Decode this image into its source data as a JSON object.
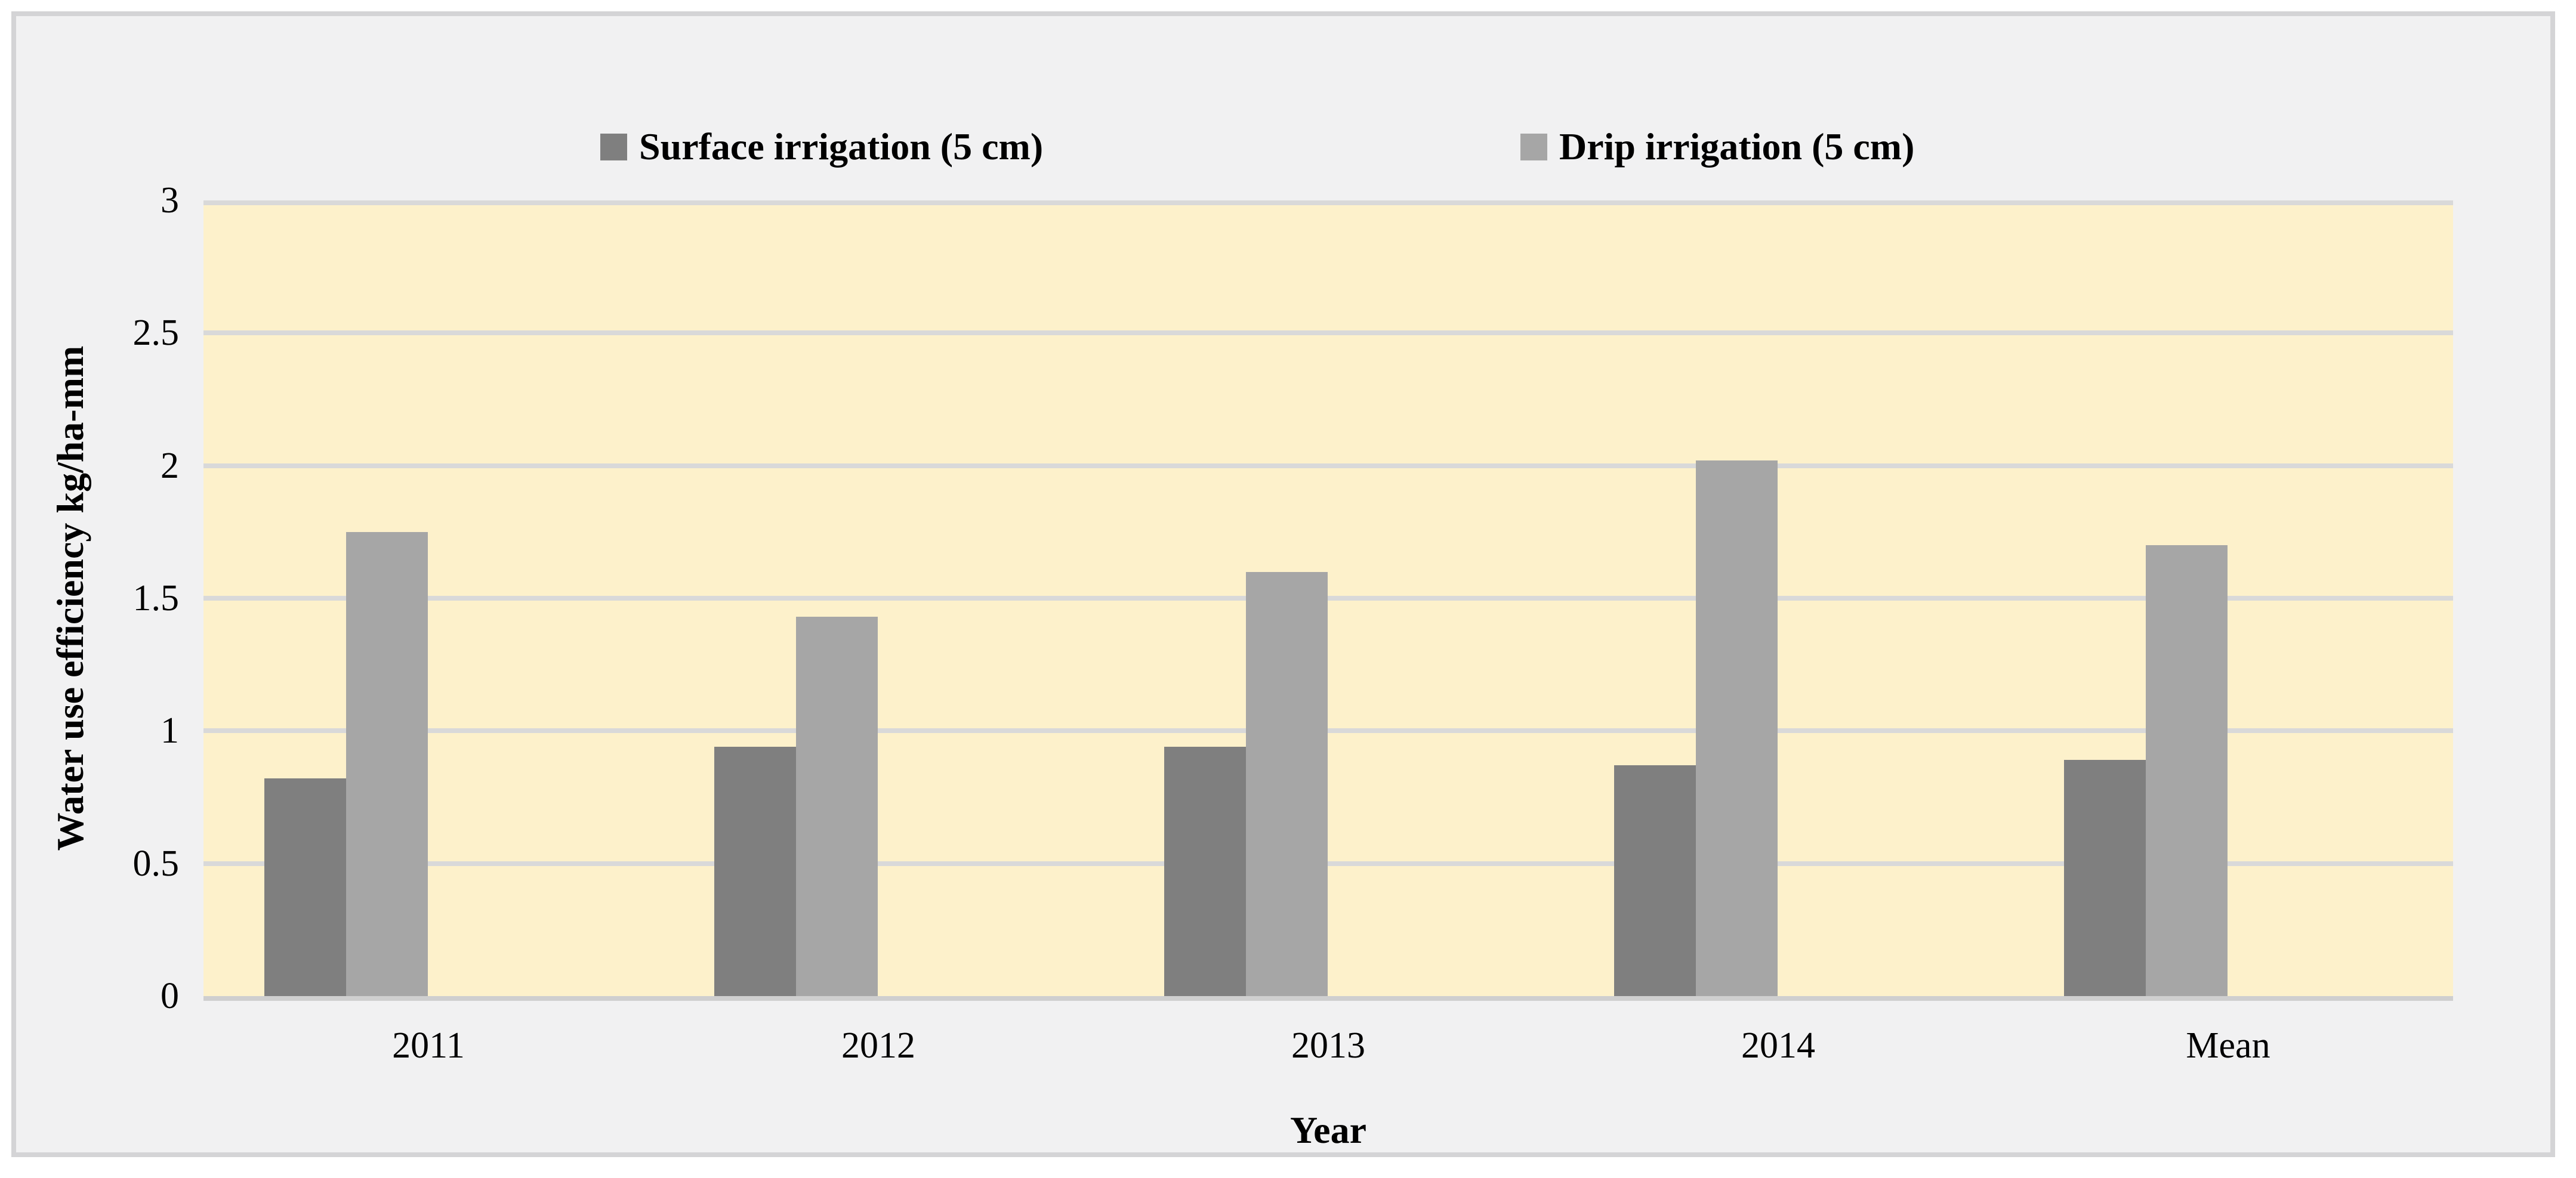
{
  "chart_data": {
    "type": "bar",
    "title": "",
    "categories": [
      "2011",
      "2012",
      "2013",
      "2014",
      "Mean"
    ],
    "series": [
      {
        "name": "Surface irrigation (5 cm)",
        "color": "#7f7f7f",
        "values": [
          0.82,
          0.94,
          0.94,
          0.87,
          0.89
        ]
      },
      {
        "name": "Drip irrigation (5 cm)",
        "color": "#a6a6a6",
        "values": [
          1.75,
          1.43,
          1.6,
          2.02,
          1.7
        ]
      }
    ],
    "xlabel": "Year",
    "ylabel": "Water use efficiency kg/ha-mm",
    "ylim": [
      0,
      3
    ],
    "ytick_step": 0.5,
    "ytick_labels": [
      "0",
      "0.5",
      "1",
      "1.5",
      "2",
      "2.5",
      "3"
    ],
    "legend_position": "top",
    "grid": "horizontal",
    "colors": {
      "plot_background": "#fdf1cb",
      "canvas_background": "#f1f1f2",
      "frame_border": "#d4d4d6",
      "gridline": "#d9d9d9",
      "axis_line": "#cfcfcf",
      "text": "#000000"
    }
  }
}
